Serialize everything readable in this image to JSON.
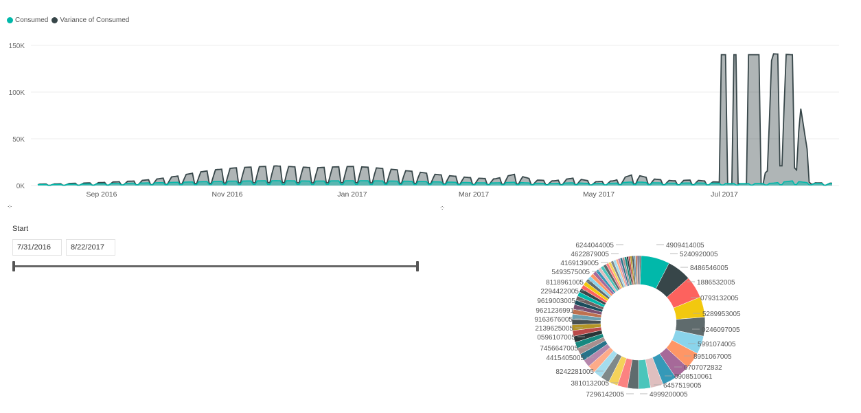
{
  "legend": {
    "series1": {
      "label": "Consumed",
      "color": "#01B8AA"
    },
    "series2": {
      "label": "Variance of Consumed",
      "color": "#374649"
    }
  },
  "chart_data": [
    {
      "type": "area",
      "y_ticks": [
        "150K",
        "100K",
        "50K",
        "0K"
      ],
      "x_ticks": [
        "Sep 2016",
        "Nov 2016",
        "Jan 2017",
        "Mar 2017",
        "May 2017",
        "Jul 2017"
      ],
      "ylim": [
        0,
        150000
      ],
      "x_range": [
        "2016-07-31",
        "2017-08-22"
      ],
      "grid": true,
      "series": [
        {
          "name": "Consumed",
          "color": "#01B8AA",
          "values": [
            1000,
            1200,
            1500,
            1800,
            2200,
            2600,
            3000,
            3500,
            4000,
            4500,
            4800,
            5000,
            5200,
            5000,
            4800,
            5000,
            5200,
            5000,
            4800,
            4500,
            4000,
            3500,
            3000,
            2800,
            3500,
            2500,
            2200,
            3000,
            2000,
            2500,
            4000,
            3000,
            2500,
            2800,
            2500,
            2200,
            2000,
            2500,
            5000,
            2500,
            2200
          ]
        },
        {
          "name": "Variance of Consumed",
          "color": "#374649",
          "values": [
            1500,
            1800,
            2500,
            3000,
            4000,
            5000,
            7000,
            10000,
            14000,
            17000,
            19000,
            20000,
            21000,
            20000,
            19000,
            20000,
            20500,
            19000,
            17000,
            15000,
            12000,
            10000,
            8000,
            7000,
            12000,
            6000,
            5000,
            8000,
            4000,
            5000,
            12000,
            7000,
            5000,
            6000,
            4000,
            3000,
            2500,
            141000,
            140000,
            3000,
            2500
          ]
        }
      ]
    },
    {
      "type": "pie",
      "labels_right": [
        "4909414005",
        "5240920005",
        "8486546005",
        "1886532005",
        "0793132005",
        "5289953005",
        "0246097005",
        "5991074005",
        "8951067005",
        "0707072832",
        "0908510061",
        "6457519005",
        "4999200005"
      ],
      "labels_left": [
        "6244044005",
        "4622879005",
        "4169139005",
        "5493575005",
        "8118961005",
        "2294422005",
        "9619003005",
        "9621236991",
        "9163676005",
        "2139625005",
        "0596107005",
        "7456647005",
        "4415405005",
        "8242281005",
        "3810132005",
        "7296142005"
      ],
      "values": [
        6.5,
        5.5,
        5,
        4.6,
        4.3,
        4.1,
        3.8,
        3.5,
        3.2,
        2.9,
        2.7,
        2.5,
        2.3,
        2.1,
        2,
        1.9,
        1.8,
        1.7,
        1.6,
        1.5,
        1.4,
        1.4,
        1.3,
        1.3,
        1.2,
        1.2,
        1.1,
        1.1,
        1,
        1,
        1,
        0.9,
        0.9,
        0.9,
        0.8,
        0.8,
        0.8,
        0.8,
        0.7,
        0.7,
        0.7,
        0.7,
        0.6,
        0.6,
        0.6,
        0.6,
        0.5,
        0.5,
        0.5,
        0.5,
        0.5,
        0.4,
        0.4,
        0.4,
        0.4,
        0.4,
        0.4,
        0.3,
        0.3,
        0.3
      ],
      "colors": [
        "#01B8AA",
        "#374649",
        "#FD625E",
        "#F2C80F",
        "#5F6B6D",
        "#8AD4EB",
        "#FE9666",
        "#A66999",
        "#3599B8",
        "#DFBFBF",
        "#4AC5BB",
        "#5F6B6D",
        "#FB8281",
        "#F4D25A",
        "#7F898A",
        "#A4DDEE",
        "#FDAB89",
        "#B687AC",
        "#28738A",
        "#A78F8F",
        "#168980",
        "#293537",
        "#BB4A4A",
        "#B59525",
        "#475052",
        "#6A9FB0",
        "#BD7150",
        "#7B4F71",
        "#1B4D5C",
        "#706060"
      ]
    }
  ],
  "spinners": {
    "glyph": "⠐⠂⠁"
  },
  "slicer": {
    "title": "Start",
    "start_date": "7/31/2016",
    "end_date": "8/22/2017"
  }
}
